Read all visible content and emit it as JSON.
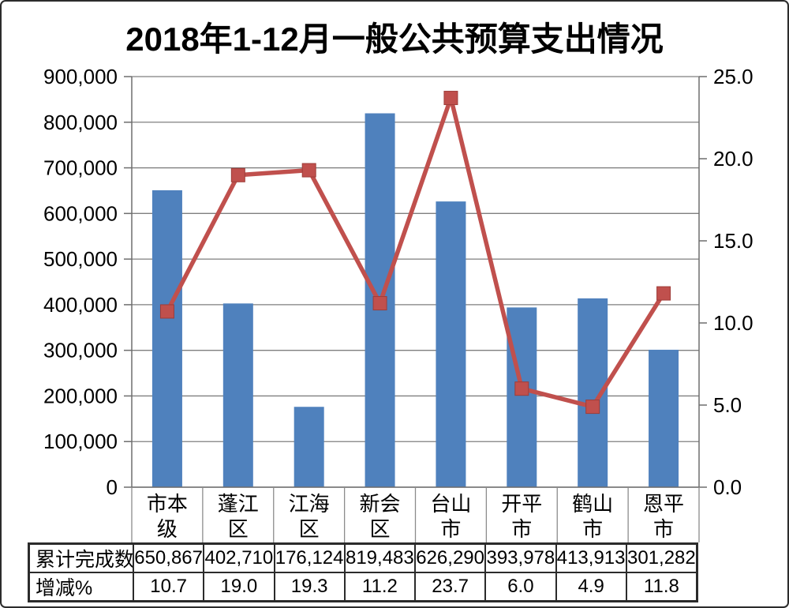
{
  "title": "2018年1-12月一般公共预算支出情况",
  "chart_data": {
    "type": "bar",
    "title": "2018年1-12月一般公共预算支出情况",
    "categories": [
      "市本级",
      "蓬江区",
      "江海区",
      "新会区",
      "台山市",
      "开平市",
      "鹤山市",
      "恩平市"
    ],
    "series": [
      {
        "name": "累计完成数",
        "type": "bar",
        "axis": "left",
        "color": "#4F81BD",
        "values": [
          650867,
          402710,
          176124,
          819483,
          626290,
          393978,
          413913,
          301282
        ]
      },
      {
        "name": "增减%",
        "type": "line",
        "axis": "right",
        "color": "#C0504D",
        "marker": "square",
        "values": [
          10.7,
          19.0,
          19.3,
          11.2,
          23.7,
          6.0,
          4.9,
          11.8
        ]
      }
    ],
    "left_axis": {
      "min": 0,
      "max": 900000,
      "step": 100000,
      "tick_labels": [
        "0",
        "100,000",
        "200,000",
        "300,000",
        "400,000",
        "500,000",
        "600,000",
        "700,000",
        "800,000",
        "900,000"
      ]
    },
    "right_axis": {
      "min": 0,
      "max": 25,
      "step": 5,
      "tick_labels": [
        "0.0",
        "5.0",
        "10.0",
        "15.0",
        "20.0",
        "25.0"
      ]
    },
    "grid": true,
    "legend_position": "none"
  },
  "table": {
    "rows": [
      {
        "label": "累计完成数",
        "values": [
          "650,867",
          "402,710",
          "176,124",
          "819,483",
          "626,290",
          "393,978",
          "413,913",
          "301,282"
        ]
      },
      {
        "label": "增减%",
        "values": [
          "10.7",
          "19.0",
          "19.3",
          "11.2",
          "23.7",
          "6.0",
          "4.9",
          "11.8"
        ]
      }
    ]
  },
  "colors": {
    "bar": "#4F81BD",
    "line": "#C0504D",
    "marker_edge": "#9E3D39",
    "gridline": "#7F7F7F",
    "axis": "#6E6E6E",
    "category_divider": "#8C8C8C",
    "text": "#000000"
  }
}
